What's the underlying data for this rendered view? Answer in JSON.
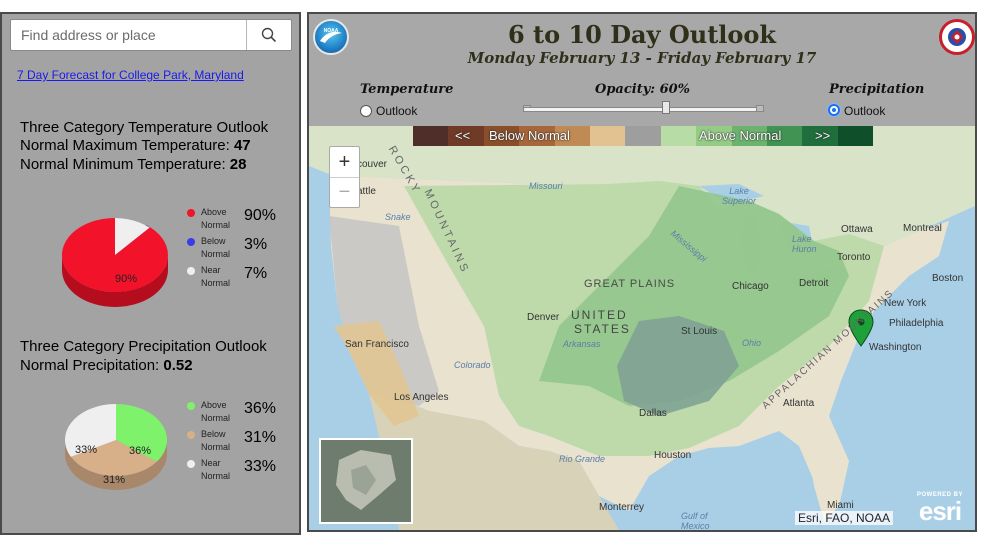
{
  "search": {
    "placeholder": "Find address or place",
    "icon": "search-icon"
  },
  "forecast_link": "7 Day Forecast for College Park, Maryland",
  "temperature": {
    "title": "Three Category Temperature Outlook",
    "max_label": "Normal Maximum Temperature: ",
    "max_value": "47",
    "min_label": "Normal Minimum Temperature: ",
    "min_value": "28",
    "pie_label": "90%",
    "legend": [
      {
        "label": "Above Normal",
        "pct": "90%",
        "color": "#f2132a"
      },
      {
        "label": "Below Normal",
        "pct": "3%",
        "color": "#3b3bea"
      },
      {
        "label": "Near Normal",
        "pct": "7%",
        "color": "#efefef"
      }
    ]
  },
  "precipitation": {
    "title": "Three Category Precipitation Outlook",
    "normal_label": "Normal Precipitation: ",
    "normal_value": "0.52",
    "pie_labels": {
      "above": "36%",
      "below": "31%",
      "near": "33%"
    },
    "legend": [
      {
        "label": "Above Normal",
        "pct": "36%",
        "color": "#7ef26b"
      },
      {
        "label": "Below Normal",
        "pct": "31%",
        "color": "#d7b08a"
      },
      {
        "label": "Near Normal",
        "pct": "33%",
        "color": "#efefef"
      }
    ]
  },
  "map": {
    "title": "6 to 10 Day Outlook",
    "subtitle": "Monday February 13 - Friday February 17",
    "controls": {
      "temperature_label": "Temperature",
      "temperature_option": "Outlook",
      "opacity_label": "Opacity: 60%",
      "opacity_value": 0.6,
      "precipitation_label": "Precipitation",
      "precipitation_option": "Outlook",
      "selected": "precipitation"
    },
    "color_bar": {
      "left_arrows": "<<",
      "below_label": "Below Normal",
      "above_label": "Above Normal",
      "right_arrows": ">>",
      "colors": [
        "#4f2e2a",
        "#6f3a26",
        "#8a4f2a",
        "#a7673a",
        "#c08a55",
        "#e1c290",
        "#9e9e9e",
        "#b7dca5",
        "#95cc85",
        "#6cb46e",
        "#409352",
        "#1f6e3c",
        "#0f4f2a"
      ]
    },
    "place_labels": [
      "couver",
      "attle",
      "Missouri",
      "Lake Superior",
      "Ottawa",
      "Montreal",
      "Lake Huron",
      "Toronto",
      "Boston",
      "GREAT PLAINS",
      "Chicago",
      "Detroit",
      "New York",
      "Philadelphia",
      "Washington",
      "Denver",
      "UNITED",
      "STATES",
      "St Louis",
      "Arkansas",
      "Ohio",
      "San Francisco",
      "Colorado",
      "Los Angeles",
      "Dallas",
      "Atlanta",
      "Houston",
      "Rio Grande",
      "Monterrey",
      "Gulf of Mexico",
      "Miami",
      "Mississippi",
      "Snake",
      "ROCKY",
      "MOUNTAINS",
      "APPALACHIAN MOUNTAINS"
    ],
    "attribution": "Esri, FAO, NOAA",
    "esri_powered": "POWERED BY",
    "esri_word": "esri"
  }
}
